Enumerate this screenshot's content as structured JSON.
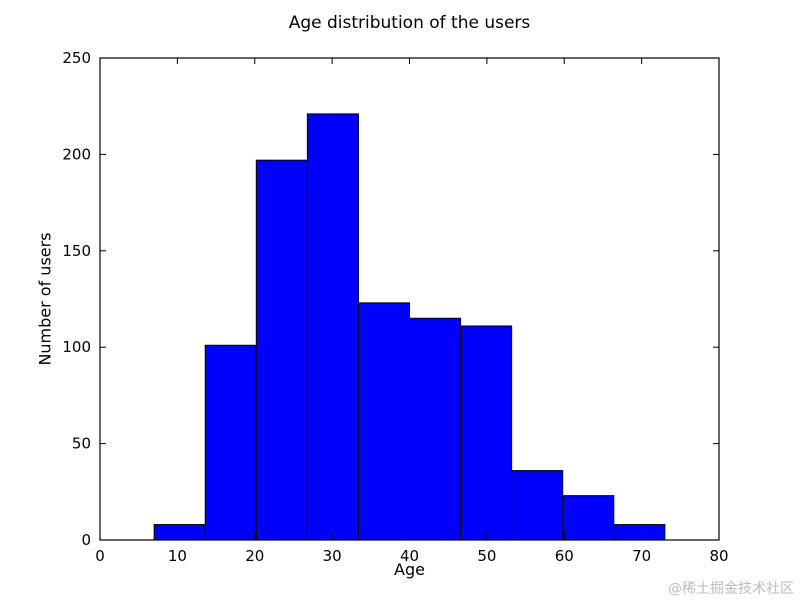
{
  "figure": {
    "watermark": "@稀土掘金技术社区"
  },
  "chart_data": {
    "type": "bar",
    "subtype": "histogram",
    "title": "Age distribution of the users",
    "xlabel": "Age",
    "ylabel": "Number of users",
    "xlim": [
      0,
      80
    ],
    "ylim": [
      0,
      250
    ],
    "xticks": [
      0,
      10,
      20,
      30,
      40,
      50,
      60,
      70,
      80
    ],
    "yticks": [
      0,
      50,
      100,
      150,
      200,
      250
    ],
    "bin_edges": [
      7.0,
      13.6,
      20.2,
      26.8,
      33.4,
      40.0,
      46.6,
      53.2,
      59.8,
      66.4,
      73.0
    ],
    "values": [
      8,
      101,
      197,
      221,
      123,
      115,
      111,
      36,
      23,
      8
    ],
    "bar_color": "#0000ff",
    "edge_color": "#000000",
    "axes_color": "#000000",
    "grid": false,
    "legend_position": "none"
  }
}
